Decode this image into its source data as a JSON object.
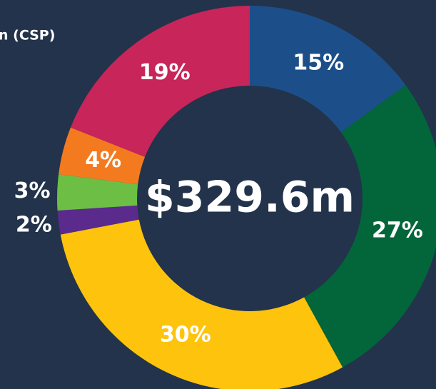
{
  "chart_data": {
    "type": "donut",
    "title": "n (CSP)",
    "center_label": "$329.6m",
    "categories": [
      null,
      null,
      null,
      null,
      null,
      null,
      null
    ],
    "values": [
      15,
      27,
      30,
      2,
      3,
      4,
      19
    ],
    "value_labels": [
      "15%",
      "27%",
      "30%",
      "2%",
      "3%",
      "4%",
      "19%"
    ],
    "colors": [
      "#1c4f8a",
      "#03663a",
      "#fec40d",
      "#5a2a8c",
      "#6cbf44",
      "#f47a20",
      "#c8255a"
    ]
  }
}
